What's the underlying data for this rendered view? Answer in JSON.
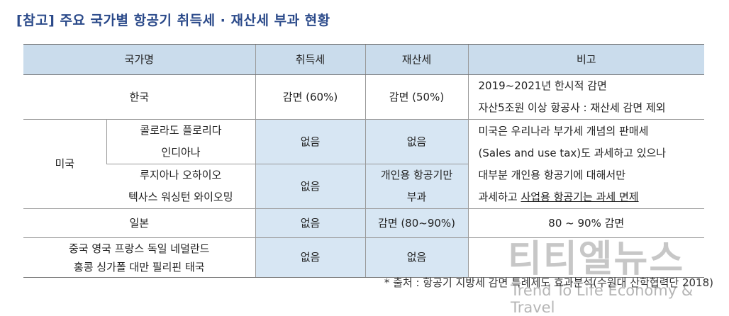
{
  "title": "[참고] 주요 국가별 항공기 취득세 · 재산세 부과 현황",
  "headers": {
    "country": "국가명",
    "acq": "취득세",
    "prop": "재산세",
    "note": "비고"
  },
  "rows": {
    "korea": {
      "country": "한국",
      "acq": "감면 (60%)",
      "prop": "감면 (50%)",
      "note_line1": "2019~2021년 한시적 감면",
      "note_line2": "자산5조원 이상 항공사 : 재산세 감면 제외"
    },
    "usa": {
      "country": "미국",
      "group1_line1": "콜로라도 플로리다",
      "group1_line2": "인디아나",
      "group1_acq": "없음",
      "group1_prop": "없음",
      "group2_line1": "루지아나 오하이오",
      "group2_line2": "텍사스 워싱턴 와이오밍",
      "group2_acq": "없음",
      "group2_prop_line1": "개인용 항공기만",
      "group2_prop_line2": "부과",
      "note_line1": "미국은 우리나라 부가세 개념의 판매세",
      "note_line2": "(Sales and use tax)도 과세하고 있으나",
      "note_line3": "대부분 개인용 항공기에 대해서만",
      "note_line4_a": "과세하고 ",
      "note_line4_b": "사업용 항공기는 과세 면제"
    },
    "japan": {
      "country": "일본",
      "acq": "없음",
      "prop": "감면 (80~90%)",
      "note": "80 ~ 90% 감면"
    },
    "others": {
      "country_line1": "중국 영국 프랑스 독일 네덜란드",
      "country_line2": "홍콩 싱가폴 대만 필리핀 태국",
      "acq": "없음",
      "prop": "없음",
      "note": ""
    }
  },
  "source": "* 출처 : 항공기 지방세 감면 특례제도 효과분석(수원대 산학협력단 2018)",
  "watermark": {
    "main": "티티엘뉴스",
    "sub": "Trend To Life Economy & Travel"
  }
}
